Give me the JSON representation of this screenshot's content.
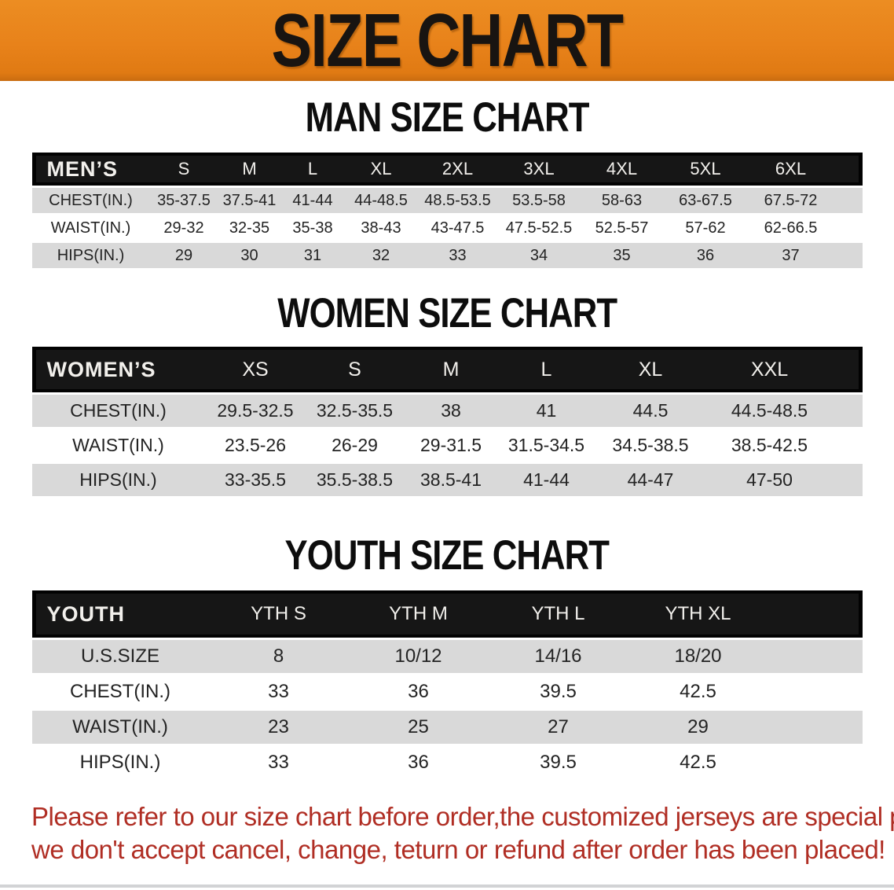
{
  "banner": {
    "title": "SIZE CHART",
    "bg_color": "#E8821A",
    "text_color": "#181411"
  },
  "colors": {
    "table_header_bg": "#161616",
    "table_header_text": "#F2F0EC",
    "row_stripe_gray": "#D9D9D9",
    "row_white": "#FFFFFF",
    "disclaimer_red": "#B02E24"
  },
  "sections": [
    {
      "id": "men",
      "title": "MAN SIZE CHART",
      "corner": "MEN’S",
      "columns": [
        "S",
        "M",
        "L",
        "XL",
        "2XL",
        "3XL",
        "4XL",
        "5XL",
        "6XL"
      ],
      "rows": [
        {
          "label": "CHEST(IN.)",
          "values": [
            "35-37.5",
            "37.5-41",
            "41-44",
            "44-48.5",
            "48.5-53.5",
            "53.5-58",
            "58-63",
            "63-67.5",
            "67.5-72"
          ]
        },
        {
          "label": "WAIST(IN.)",
          "values": [
            "29-32",
            "32-35",
            "35-38",
            "38-43",
            "43-47.5",
            "47.5-52.5",
            "52.5-57",
            "57-62",
            "62-66.5"
          ]
        },
        {
          "label": "HIPS(IN.)",
          "values": [
            "29",
            "30",
            "31",
            "32",
            "33",
            "34",
            "35",
            "36",
            "37"
          ]
        }
      ]
    },
    {
      "id": "women",
      "title": "WOMEN SIZE CHART",
      "corner": "WOMEN’S",
      "columns": [
        "XS",
        "S",
        "M",
        "L",
        "XL",
        "XXL"
      ],
      "rows": [
        {
          "label": "CHEST(IN.)",
          "values": [
            "29.5-32.5",
            "32.5-35.5",
            "38",
            "41",
            "44.5",
            "44.5-48.5"
          ]
        },
        {
          "label": "WAIST(IN.)",
          "values": [
            "23.5-26",
            "26-29",
            "29-31.5",
            "31.5-34.5",
            "34.5-38.5",
            "38.5-42.5"
          ]
        },
        {
          "label": "HIPS(IN.)",
          "values": [
            "33-35.5",
            "35.5-38.5",
            "38.5-41",
            "41-44",
            "44-47",
            "47-50"
          ]
        }
      ]
    },
    {
      "id": "youth",
      "title": "YOUTH SIZE CHART",
      "corner": "YOUTH",
      "columns": [
        "YTH S",
        "YTH M",
        "YTH L",
        "YTH XL"
      ],
      "rows": [
        {
          "label": "U.S.SIZE",
          "values": [
            "8",
            "10/12",
            "14/16",
            "18/20"
          ]
        },
        {
          "label": "CHEST(IN.)",
          "values": [
            "33",
            "36",
            "39.5",
            "42.5"
          ]
        },
        {
          "label": "WAIST(IN.)",
          "values": [
            "23",
            "25",
            "27",
            "29"
          ]
        },
        {
          "label": "HIPS(IN.)",
          "values": [
            "33",
            "36",
            "39.5",
            "42.5"
          ]
        }
      ]
    }
  ],
  "footer": {
    "line1": "Please refer to our size chart before order,the customized jerseys are special products,",
    "line2": "we don't accept cancel, change, teturn or refund after order has been placed!"
  }
}
